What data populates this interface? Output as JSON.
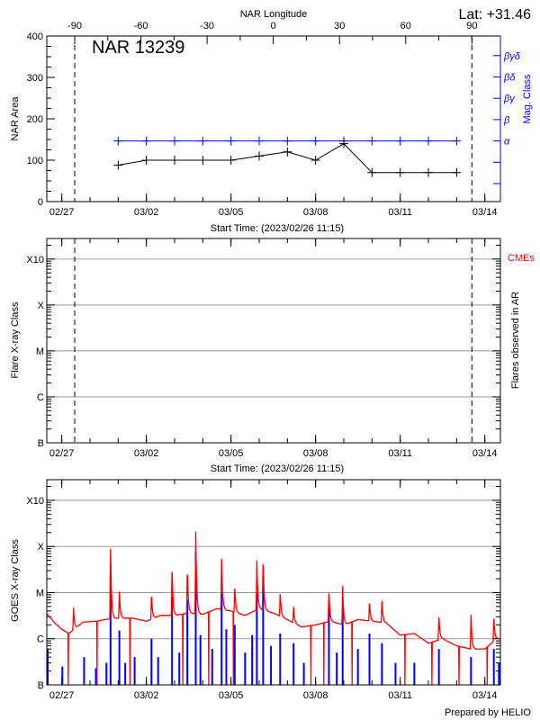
{
  "header": {
    "lat_label": "Lat: +31.46",
    "longitude_title": "NAR Longitude",
    "footer": "Prepared by HELIO"
  },
  "colors": {
    "area": "#000000",
    "mag_class": "#0000ff",
    "goes_long": "#ff0000",
    "goes_short": "#0000ff",
    "cme": "#ff0000",
    "grid": "#999999"
  },
  "chart_data": [
    {
      "type": "line",
      "title": "NAR 13239",
      "xlabel": "Start Time: (2023/02/26 11:15)",
      "ylabel": "NAR Area",
      "y2label": "Mag. Class",
      "xlim": [
        "2023-02-26T11:15",
        "2023-03-14T13:15"
      ],
      "ylim": [
        0,
        400
      ],
      "x_ticks": [
        {
          "date": "2023-02-27T00:00",
          "label": "02/27"
        },
        {
          "date": "2023-03-02T00:00",
          "label": "03/02"
        },
        {
          "date": "2023-03-05T00:00",
          "label": "03/05"
        },
        {
          "date": "2023-03-08T00:00",
          "label": "03/08"
        },
        {
          "date": "2023-03-11T00:00",
          "label": "03/11"
        },
        {
          "date": "2023-03-14T00:00",
          "label": "03/14"
        }
      ],
      "y_ticks": [
        "0",
        "100",
        "200",
        "300",
        "400"
      ],
      "y2_classes": [
        "",
        "",
        "α",
        "β",
        "βγ",
        "βδ",
        "βγδ"
      ],
      "top_axis": {
        "label": "NAR Longitude",
        "ticks": [
          "-90",
          "-60",
          "-30",
          "0",
          "30",
          "60",
          "90"
        ]
      },
      "limb_times": [
        "2023-02-27T11:00",
        "2023-03-13T13:00"
      ],
      "series": [
        {
          "key": "area",
          "x": [
            "2023-03-01T00:00",
            "2023-03-02T00:00",
            "2023-03-03T00:00",
            "2023-03-04T00:00",
            "2023-03-05T00:00",
            "2023-03-06T00:00",
            "2023-03-07T00:00",
            "2023-03-08T00:00",
            "2023-03-09T00:00",
            "2023-03-10T00:00",
            "2023-03-11T00:00",
            "2023-03-12T00:00",
            "2023-03-13T00:00"
          ],
          "values": [
            88,
            100,
            100,
            100,
            100,
            110,
            120,
            100,
            140,
            70,
            70,
            70,
            70
          ]
        },
        {
          "key": "mag_class",
          "x": [
            "2023-03-01T00:00",
            "2023-03-02T00:00",
            "2023-03-03T00:00",
            "2023-03-04T00:00",
            "2023-03-05T00:00",
            "2023-03-06T00:00",
            "2023-03-07T00:00",
            "2023-03-08T00:00",
            "2023-03-09T00:00",
            "2023-03-10T00:00",
            "2023-03-11T00:00",
            "2023-03-12T00:00",
            "2023-03-13T00:00"
          ],
          "values": [
            "α",
            "α",
            "α",
            "α",
            "α",
            "α",
            "α",
            "α",
            "α",
            "α",
            "α",
            "α",
            "α"
          ]
        }
      ]
    },
    {
      "type": "scatter",
      "xlabel": "Start Time: (2023/02/26 11:15)",
      "ylabel": "Flare X-ray Class",
      "y2label": "Flares observed in AR",
      "cme_label": "CMEs",
      "y_scale": "log",
      "ylim": [
        1e-07,
        0.0028
      ],
      "y_ticks": [
        {
          "v": 1e-07,
          "label": "B"
        },
        {
          "v": 1e-06,
          "label": "C"
        },
        {
          "v": 1e-05,
          "label": "M"
        },
        {
          "v": 0.0001,
          "label": "X"
        },
        {
          "v": 0.001,
          "label": "X10"
        }
      ],
      "grid": true,
      "flares": [],
      "cmes": []
    },
    {
      "type": "line",
      "ylabel": "GOES X-ray Class",
      "y_scale": "log",
      "ylim": [
        1e-07,
        0.0028
      ],
      "grid": true,
      "y_ticks": [
        {
          "v": 1e-07,
          "label": "B"
        },
        {
          "v": 1e-06,
          "label": "C"
        },
        {
          "v": 1e-05,
          "label": "M"
        },
        {
          "v": 0.0001,
          "label": "X"
        },
        {
          "v": 0.001,
          "label": "X10"
        }
      ],
      "x_ticks": [
        "02/27",
        "03/02",
        "03/05",
        "03/08",
        "03/11",
        "03/14"
      ],
      "goes_long_baseline": [
        [
          "2023-02-26T11:15",
          3.5e-06
        ],
        [
          "2023-02-26T18:00",
          2.2e-06
        ],
        [
          "2023-02-27T00:00",
          1.6e-06
        ],
        [
          "2023-02-27T06:00",
          1.3e-06
        ],
        [
          "2023-02-27T18:00",
          2.3e-06
        ],
        [
          "2023-02-28T06:00",
          2.4e-06
        ],
        [
          "2023-02-28T12:00",
          2.6e-06
        ],
        [
          "2023-03-01T00:00",
          2.8e-06
        ],
        [
          "2023-03-01T12:00",
          2.8e-06
        ],
        [
          "2023-03-02T00:00",
          2.4e-06
        ],
        [
          "2023-03-02T12:00",
          3.2e-06
        ],
        [
          "2023-03-03T00:00",
          3.2e-06
        ],
        [
          "2023-03-03T12:00",
          3.6e-06
        ],
        [
          "2023-03-04T00:00",
          3.4e-06
        ],
        [
          "2023-03-04T12:00",
          4.5e-06
        ],
        [
          "2023-03-05T00:00",
          4e-06
        ],
        [
          "2023-03-05T12:00",
          3.2e-06
        ],
        [
          "2023-03-06T00:00",
          4.5e-06
        ],
        [
          "2023-03-06T12:00",
          3.6e-06
        ],
        [
          "2023-03-07T00:00",
          2.6e-06
        ],
        [
          "2023-03-07T12:00",
          1.8e-06
        ],
        [
          "2023-03-08T00:00",
          2e-06
        ],
        [
          "2023-03-08T12:00",
          2.4e-06
        ],
        [
          "2023-03-09T00:00",
          2e-06
        ],
        [
          "2023-03-09T12:00",
          2.6e-06
        ],
        [
          "2023-03-10T00:00",
          2.4e-06
        ],
        [
          "2023-03-10T12:00",
          2.2e-06
        ],
        [
          "2023-03-11T00:00",
          1.2e-06
        ],
        [
          "2023-03-11T12:00",
          1.3e-06
        ],
        [
          "2023-03-12T00:00",
          8e-07
        ],
        [
          "2023-03-12T12:00",
          1e-06
        ],
        [
          "2023-03-13T00:00",
          7e-07
        ],
        [
          "2023-03-13T12:00",
          6e-07
        ],
        [
          "2023-03-14T00:00",
          6e-07
        ],
        [
          "2023-03-14T10:00",
          1e-06
        ]
      ],
      "goes_long_peaks": [
        [
          "2023-02-27T10:00",
          4.7e-06
        ],
        [
          "2023-02-28T17:30",
          8.9e-05
        ],
        [
          "2023-03-01T01:00",
          1.05e-05
        ],
        [
          "2023-03-02T04:20",
          9.7e-06
        ],
        [
          "2023-03-02T21:50",
          4e-05
        ],
        [
          "2023-03-03T10:50",
          3.4e-05
        ],
        [
          "2023-03-03T18:00",
          0.00021
        ],
        [
          "2023-03-04T16:00",
          5.4e-05
        ],
        [
          "2023-03-05T03:10",
          1.4e-05
        ],
        [
          "2023-03-05T22:00",
          5e-05
        ],
        [
          "2023-03-06T03:20",
          5.9e-05
        ],
        [
          "2023-03-06T17:50",
          1.1e-05
        ],
        [
          "2023-03-07T05:15",
          4.9e-06
        ],
        [
          "2023-03-08T11:20",
          1.2e-05
        ],
        [
          "2023-03-08T23:00",
          1.4e-05
        ],
        [
          "2023-03-09T21:50",
          6.6e-06
        ],
        [
          "2023-03-10T08:25",
          7.5e-06
        ],
        [
          "2023-03-12T08:55",
          3.3e-06
        ],
        [
          "2023-03-13T12:15",
          3.3e-06
        ],
        [
          "2023-03-14T07:40",
          3.1e-06
        ]
      ],
      "goes_long_dropouts": [
        "2023-02-27T05:30",
        "2023-02-28T06:00",
        "2023-03-01T10:00",
        "2023-03-03T07:00",
        "2023-03-04T05:00",
        "2023-03-05T02:00",
        "2023-03-07T20:00",
        "2023-03-08T07:00",
        "2023-03-09T07:00",
        "2023-03-11T04:00",
        "2023-03-12T03:00",
        "2023-03-13T02:00",
        "2023-03-14T02:00"
      ],
      "goes_short_peaks": [
        [
          "2023-02-26T12:00",
          6e-07
        ],
        [
          "2023-02-27T00:30",
          2.5e-07
        ],
        [
          "2023-02-27T19:00",
          4e-07
        ],
        [
          "2023-02-28T05:00",
          2.3e-07
        ],
        [
          "2023-02-28T14:00",
          3e-07
        ],
        [
          "2023-02-28T17:30",
          2.2e-05
        ],
        [
          "2023-03-01T01:00",
          1.5e-06
        ],
        [
          "2023-03-01T06:00",
          3e-07
        ],
        [
          "2023-03-01T14:00",
          4e-07
        ],
        [
          "2023-03-02T04:20",
          1e-06
        ],
        [
          "2023-03-02T10:00",
          4e-07
        ],
        [
          "2023-03-02T21:50",
          8.4e-06
        ],
        [
          "2023-03-03T04:00",
          5e-07
        ],
        [
          "2023-03-03T10:50",
          7e-06
        ],
        [
          "2023-03-03T18:00",
          7.6e-05
        ],
        [
          "2023-03-03T22:00",
          1.2e-06
        ],
        [
          "2023-03-04T08:00",
          6e-07
        ],
        [
          "2023-03-04T16:00",
          1e-05
        ],
        [
          "2023-03-04T20:00",
          1.6e-06
        ],
        [
          "2023-03-05T03:10",
          2e-06
        ],
        [
          "2023-03-05T12:00",
          5e-07
        ],
        [
          "2023-03-05T18:00",
          1.2e-06
        ],
        [
          "2023-03-05T22:00",
          1e-05
        ],
        [
          "2023-03-06T03:20",
          2.2e-05
        ],
        [
          "2023-03-06T10:00",
          7e-07
        ],
        [
          "2023-03-06T17:50",
          1.3e-06
        ],
        [
          "2023-03-07T05:15",
          8e-07
        ],
        [
          "2023-03-07T14:00",
          3e-07
        ],
        [
          "2023-03-08T11:20",
          6e-06
        ],
        [
          "2023-03-08T18:00",
          5e-07
        ],
        [
          "2023-03-08T23:00",
          5e-06
        ],
        [
          "2023-03-09T12:00",
          6e-07
        ],
        [
          "2023-03-09T21:50",
          1.3e-06
        ],
        [
          "2023-03-10T08:25",
          8e-07
        ],
        [
          "2023-03-10T20:00",
          3e-07
        ],
        [
          "2023-03-11T12:00",
          3e-07
        ],
        [
          "2023-03-12T08:55",
          6e-07
        ],
        [
          "2023-03-13T12:15",
          4e-07
        ],
        [
          "2023-03-14T07:40",
          6e-07
        ],
        [
          "2023-03-14T12:00",
          3e-07
        ]
      ]
    }
  ]
}
